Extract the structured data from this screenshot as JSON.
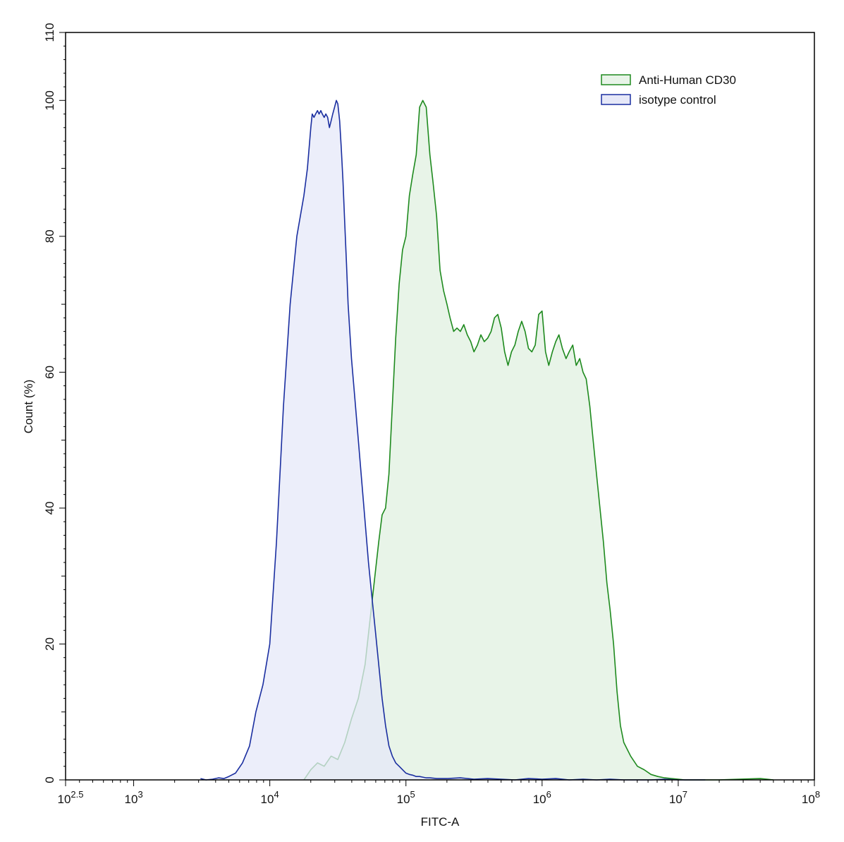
{
  "chart_data": {
    "type": "area",
    "title": "",
    "xlabel": "FITC-A",
    "ylabel": "Count  (%)",
    "x_scale": "log10",
    "xlim": [
      316.2,
      100000000
    ],
    "ylim": [
      0,
      110
    ],
    "x_ticks": [
      {
        "value": 316.2,
        "base": "10",
        "exp": "2.5"
      },
      {
        "value": 1000,
        "base": "10",
        "exp": "3"
      },
      {
        "value": 10000,
        "base": "10",
        "exp": "4"
      },
      {
        "value": 100000,
        "base": "10",
        "exp": "5"
      },
      {
        "value": 1000000,
        "base": "10",
        "exp": "6"
      },
      {
        "value": 10000000,
        "base": "10",
        "exp": "7"
      },
      {
        "value": 100000000,
        "base": "10",
        "exp": "8"
      }
    ],
    "y_ticks": [
      0,
      20,
      40,
      60,
      80,
      100,
      110
    ],
    "grid": false,
    "legend_position": "top-right",
    "series": [
      {
        "name": "Anti-Human CD30",
        "color": "#1e8a1e",
        "fill": "#e8f4e8",
        "x": [
          17800,
          20000,
          22400,
          25100,
          28200,
          31600,
          35500,
          39800,
          44700,
          50100,
          56200,
          63100,
          66800,
          70800,
          75000,
          79400,
          84100,
          89100,
          94400,
          100000,
          106000,
          112000,
          119000,
          126000,
          133000,
          141000,
          150000,
          158000,
          168000,
          178000,
          189000,
          200000,
          211000,
          224000,
          237000,
          251000,
          266000,
          282000,
          299000,
          316000,
          335000,
          355000,
          376000,
          398000,
          422000,
          447000,
          473000,
          501000,
          531000,
          562000,
          596000,
          631000,
          668000,
          708000,
          750000,
          794000,
          841000,
          891000,
          944000,
          1000000,
          1060000,
          1120000,
          1190000,
          1260000,
          1330000,
          1410000,
          1500000,
          1580000,
          1680000,
          1780000,
          1890000,
          2000000,
          2110000,
          2240000,
          2370000,
          2510000,
          2660000,
          2820000,
          2990000,
          3160000,
          3350000,
          3550000,
          3760000,
          3980000,
          4470000,
          5010000,
          5620000,
          6310000,
          7080000,
          7940000,
          8910000,
          10000000,
          11200000,
          12600000,
          14100000,
          15800000,
          17800000,
          19500000,
          40000000,
          45000000,
          50000000
        ],
        "values": [
          0,
          1.5,
          2.5,
          2.0,
          3.5,
          3.0,
          5.5,
          9.0,
          12.0,
          17.0,
          26.0,
          35.0,
          39.0,
          40.0,
          45.0,
          55.0,
          65.0,
          73.0,
          78.0,
          80.0,
          86.0,
          89.0,
          92.0,
          99.0,
          100.0,
          99.0,
          92.0,
          88.0,
          83.0,
          75.0,
          72.0,
          70.0,
          68.0,
          66.0,
          66.5,
          66.0,
          67.0,
          65.5,
          64.5,
          63.0,
          64.0,
          65.5,
          64.5,
          65.0,
          66.0,
          68.0,
          68.5,
          66.5,
          63.0,
          61.0,
          63.0,
          64.0,
          66.0,
          67.5,
          66.0,
          63.5,
          63.0,
          64.0,
          68.5,
          69.0,
          63.0,
          61.0,
          63.0,
          64.5,
          65.5,
          63.5,
          62.0,
          63.0,
          64.0,
          61.0,
          62.0,
          60.0,
          59.0,
          55.0,
          50.0,
          45.0,
          40.0,
          35.0,
          29.0,
          25.0,
          20.0,
          13.0,
          8.0,
          5.5,
          3.5,
          2.0,
          1.5,
          0.8,
          0.5,
          0.3,
          0.2,
          0.1,
          0,
          0,
          0,
          0,
          0,
          0,
          0.2,
          0.1,
          0
        ]
      },
      {
        "name": "isotype control",
        "color": "#1a2ea0",
        "fill": "#e6e8f8",
        "x": [
          3100,
          3400,
          3800,
          4200,
          4600,
          5000,
          5600,
          6300,
          7100,
          7900,
          8900,
          10000,
          11200,
          12600,
          14100,
          15800,
          17800,
          18900,
          20000,
          20500,
          21100,
          21700,
          22400,
          23000,
          23700,
          24300,
          25100,
          25800,
          26600,
          27400,
          28200,
          29000,
          29900,
          30800,
          31600,
          32600,
          33500,
          34500,
          35500,
          36600,
          37600,
          38700,
          39800,
          42200,
          44700,
          47300,
          50100,
          53100,
          56200,
          59600,
          63100,
          66800,
          70800,
          75000,
          79400,
          84100,
          89100,
          94400,
          100000,
          106000,
          112000,
          119000,
          126000,
          133000,
          141000,
          150000,
          168000,
          200000,
          251000,
          316000,
          398000,
          501000,
          631000,
          794000,
          1000000,
          1260000,
          1580000,
          2000000,
          2510000,
          3160000,
          3980000,
          5010000,
          6310000,
          7940000,
          10000000,
          15800000
        ],
        "values": [
          0.2,
          0,
          0.1,
          0.3,
          0.2,
          0.5,
          1.0,
          2.5,
          5.0,
          10.0,
          14.0,
          20.0,
          35.0,
          55.0,
          70.0,
          80.0,
          86.0,
          90.0,
          96.0,
          98.0,
          97.5,
          98.0,
          98.5,
          98.0,
          98.5,
          98.0,
          97.5,
          98.0,
          97.5,
          96.0,
          97.0,
          98.0,
          99.0,
          100.0,
          99.5,
          97.0,
          93.0,
          88.0,
          82.0,
          76.0,
          70.0,
          66.0,
          62.0,
          56.0,
          50.0,
          44.0,
          38.0,
          32.0,
          27.0,
          22.0,
          17.0,
          12.0,
          8.0,
          5.0,
          3.5,
          2.5,
          2.0,
          1.5,
          1.0,
          0.8,
          0.7,
          0.5,
          0.5,
          0.4,
          0.3,
          0.3,
          0.2,
          0.2,
          0.3,
          0.1,
          0.2,
          0.1,
          0,
          0.2,
          0.1,
          0.2,
          0,
          0.1,
          0,
          0.1,
          0,
          0,
          0,
          0.1,
          0,
          0
        ]
      }
    ]
  }
}
